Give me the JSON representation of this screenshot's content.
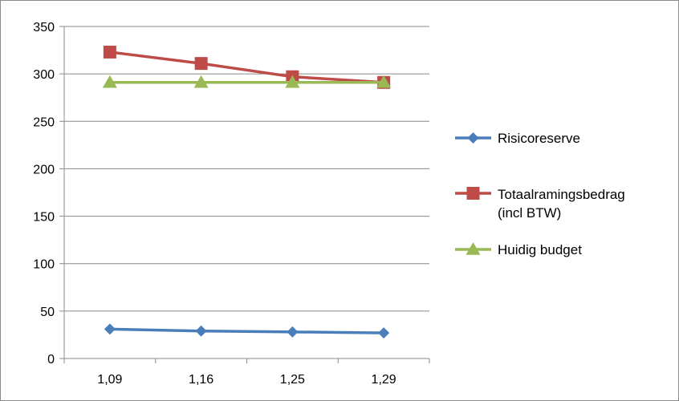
{
  "chart_data": {
    "type": "line",
    "title": "",
    "xlabel": "",
    "ylabel": "",
    "categories": [
      "1,09",
      "1,16",
      "1,25",
      "1,29"
    ],
    "ylim": [
      0,
      350
    ],
    "yticks": [
      "0",
      "50",
      "100",
      "150",
      "200",
      "250",
      "300",
      "350"
    ],
    "grid": true,
    "legend_position": "right",
    "series": [
      {
        "name": "Risicoreserve",
        "values": [
          31,
          29,
          28,
          27
        ],
        "color": "#4a7ebb",
        "marker": "diamond"
      },
      {
        "name": "Totaalramingsbedrag (incl BTW)",
        "name_lines": [
          "Totaalramingsbedrag",
          "(incl BTW)"
        ],
        "values": [
          323,
          311,
          297,
          291
        ],
        "color": "#be4b48",
        "marker": "square"
      },
      {
        "name": "Huidig budget",
        "values": [
          291,
          291,
          291,
          291
        ],
        "color": "#98b954",
        "marker": "triangle"
      }
    ]
  }
}
